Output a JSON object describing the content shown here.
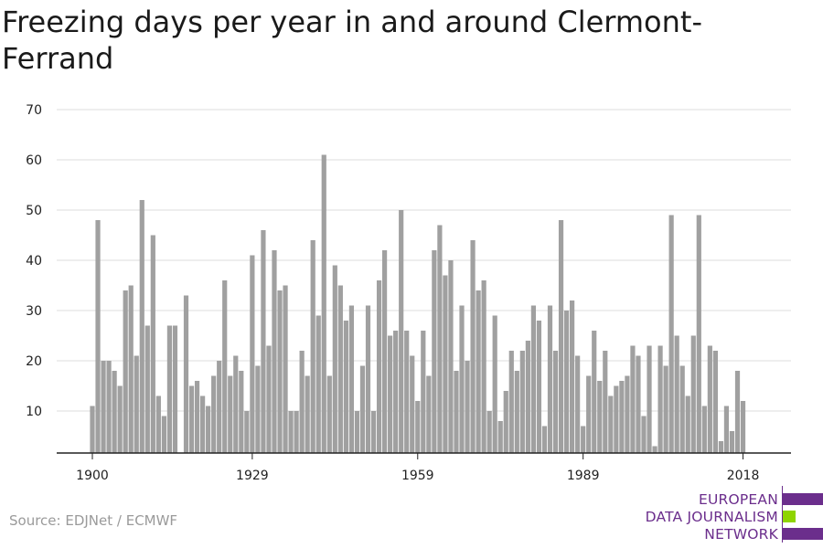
{
  "title": "Freezing days per year in and around Clermont-Ferrand",
  "source": "Source: EDJNet / ECMWF",
  "logo": {
    "lines": [
      "EUROPEAN",
      "DATA JOURNALISM",
      "NETWORK"
    ],
    "colors": {
      "purple": "#6b2e8c",
      "green": "#8fd400"
    }
  },
  "chart_data": {
    "type": "bar",
    "title": "Freezing days per year in and around Clermont-Ferrand",
    "xlabel": "",
    "ylabel": "",
    "ylim": [
      2,
      70
    ],
    "yticks": [
      10,
      20,
      30,
      40,
      50,
      60,
      70
    ],
    "xticks": [
      1900,
      1929,
      1959,
      1989,
      2018
    ],
    "grid": true,
    "bar_color": "#a0a0a0",
    "x": [
      1900,
      1901,
      1902,
      1903,
      1904,
      1905,
      1906,
      1907,
      1908,
      1909,
      1910,
      1911,
      1912,
      1913,
      1914,
      1915,
      1916,
      1917,
      1918,
      1919,
      1920,
      1921,
      1922,
      1923,
      1924,
      1925,
      1926,
      1927,
      1928,
      1929,
      1930,
      1931,
      1932,
      1933,
      1934,
      1935,
      1936,
      1937,
      1938,
      1939,
      1940,
      1941,
      1942,
      1943,
      1944,
      1945,
      1946,
      1947,
      1948,
      1949,
      1950,
      1951,
      1952,
      1953,
      1954,
      1955,
      1956,
      1957,
      1958,
      1959,
      1960,
      1961,
      1962,
      1963,
      1964,
      1965,
      1966,
      1967,
      1968,
      1969,
      1970,
      1971,
      1972,
      1973,
      1974,
      1975,
      1976,
      1977,
      1978,
      1979,
      1980,
      1981,
      1982,
      1983,
      1984,
      1985,
      1986,
      1987,
      1988,
      1989,
      1990,
      1991,
      1992,
      1993,
      1994,
      1995,
      1996,
      1997,
      1998,
      1999,
      2000,
      2001,
      2002,
      2003,
      2004,
      2005,
      2006,
      2007,
      2008,
      2009,
      2010,
      2011,
      2012,
      2013,
      2014,
      2015,
      2016,
      2017,
      2018
    ],
    "values": [
      11,
      48,
      20,
      20,
      18,
      15,
      34,
      35,
      21,
      52,
      27,
      45,
      13,
      9,
      27,
      27,
      0,
      33,
      15,
      16,
      13,
      11,
      17,
      20,
      36,
      17,
      21,
      18,
      10,
      41,
      19,
      46,
      23,
      42,
      34,
      35,
      10,
      10,
      22,
      17,
      44,
      29,
      61,
      17,
      39,
      35,
      28,
      31,
      10,
      19,
      31,
      10,
      36,
      42,
      25,
      26,
      50,
      26,
      21,
      12,
      26,
      17,
      42,
      47,
      37,
      40,
      18,
      31,
      20,
      44,
      34,
      36,
      10,
      29,
      8,
      14,
      22,
      18,
      22,
      24,
      31,
      28,
      7,
      31,
      22,
      48,
      30,
      32,
      21,
      7,
      17,
      26,
      16,
      22,
      13,
      15,
      16,
      17,
      23,
      21,
      9,
      23,
      3,
      23,
      19,
      49,
      25,
      19,
      13,
      25,
      49,
      11,
      23,
      22,
      4,
      11,
      6,
      18,
      12
    ]
  }
}
